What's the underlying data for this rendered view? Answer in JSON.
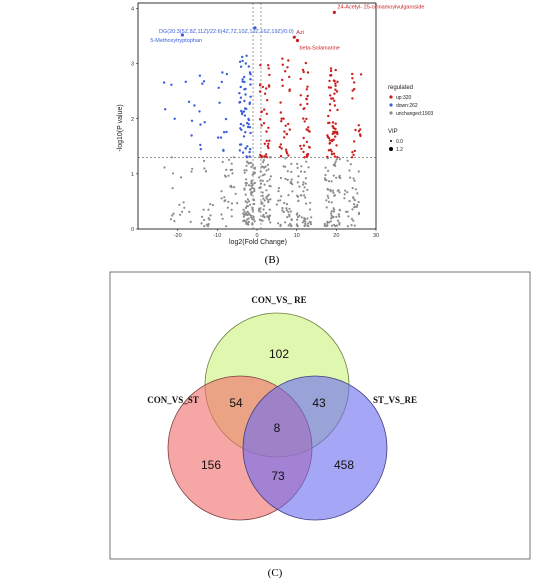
{
  "panel_b_label": "(B)",
  "panel_c_label": "(C)",
  "chart_data": [
    {
      "type": "scatter",
      "title": "",
      "xlabel": "log2(Fold Change)",
      "ylabel": "-log10(P value)",
      "xlim": [
        -30,
        30
      ],
      "ylim": [
        0,
        4.1
      ],
      "x_ticks": [
        "-20",
        "-10",
        "0",
        "10",
        "20",
        "30"
      ],
      "y_ticks": [
        "0",
        "1",
        "2",
        "3",
        "4"
      ],
      "threshold_x": [
        -1,
        1
      ],
      "threshold_y": 1.3,
      "grid": false,
      "legend_position": "right",
      "legend": {
        "color_title": "regulated",
        "entries": [
          {
            "label": "up:320",
            "color": "#cc1f1f",
            "count": 320
          },
          {
            "label": "down:262",
            "color": "#3b5fd9",
            "count": 262
          },
          {
            "label": "unchanged:1903",
            "color": "#8c8c8c",
            "count": 1903
          }
        ],
        "size_title": "VIP",
        "size_entries": [
          "0.0",
          "1.2"
        ]
      },
      "annotations": [
        {
          "text": "24-Acetyl- 25-cinnamoylvulgaroside",
          "x": 19.5,
          "y": 3.93,
          "color": "#cc1f1f"
        },
        {
          "text": "DG(20:3(5Z,8Z,11Z)/22:6(4Z,7Z,10Z,13Z,16Z,19Z)/0:0)",
          "x": -0.5,
          "y": 3.65,
          "color": "#3b5fd9"
        },
        {
          "text": "5-Methoxytryptophan",
          "x": -18.8,
          "y": 3.52,
          "color": "#3b5fd9"
        },
        {
          "text": "Azi",
          "x": 9.4,
          "y": 3.48,
          "color": "#cc1f1f"
        },
        {
          "text": "beta-Solamarine",
          "x": 10.2,
          "y": 3.42,
          "color": "#cc1f1f"
        }
      ]
    },
    {
      "type": "venn",
      "sets": [
        "CON_VS_RE",
        "CON_VS_ST",
        "ST_VS_RE"
      ],
      "set_labels": [
        "CON_VS_ RE",
        "CON_VS_ST",
        "ST_VS_RE"
      ],
      "set_colors": [
        "#ccf27a",
        "#f26b6b",
        "#6b6bf2"
      ],
      "regions": [
        {
          "sets": [
            "CON_VS_RE"
          ],
          "value": 102
        },
        {
          "sets": [
            "CON_VS_ST"
          ],
          "value": 156
        },
        {
          "sets": [
            "ST_VS_RE"
          ],
          "value": 458
        },
        {
          "sets": [
            "CON_VS_RE",
            "CON_VS_ST"
          ],
          "value": 54
        },
        {
          "sets": [
            "CON_VS_RE",
            "ST_VS_RE"
          ],
          "value": 43
        },
        {
          "sets": [
            "CON_VS_ST",
            "ST_VS_RE"
          ],
          "value": 73
        },
        {
          "sets": [
            "CON_VS_RE",
            "CON_VS_ST",
            "ST_VS_RE"
          ],
          "value": 8
        }
      ]
    }
  ]
}
